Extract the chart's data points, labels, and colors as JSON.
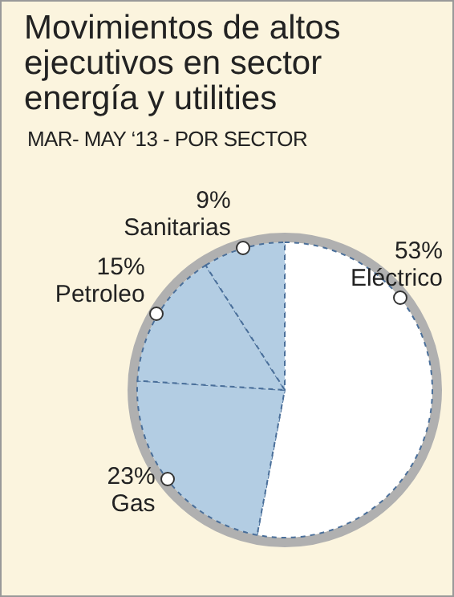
{
  "chart_data": {
    "type": "pie",
    "title": "Movimientos de altos ejecutivos en sector energía y utilities",
    "subtitle": "MAR- MAY ‘13 - POR SECTOR",
    "categories": [
      "Eléctrico",
      "Gas",
      "Petroleo",
      "Sanitarias"
    ],
    "values": [
      53,
      23,
      15,
      9
    ],
    "colors": [
      "#ffffff",
      "#b3cde3",
      "#b3cde3",
      "#b3cde3"
    ],
    "value_labels": [
      "53%",
      "23%",
      "15%",
      "9%"
    ]
  }
}
